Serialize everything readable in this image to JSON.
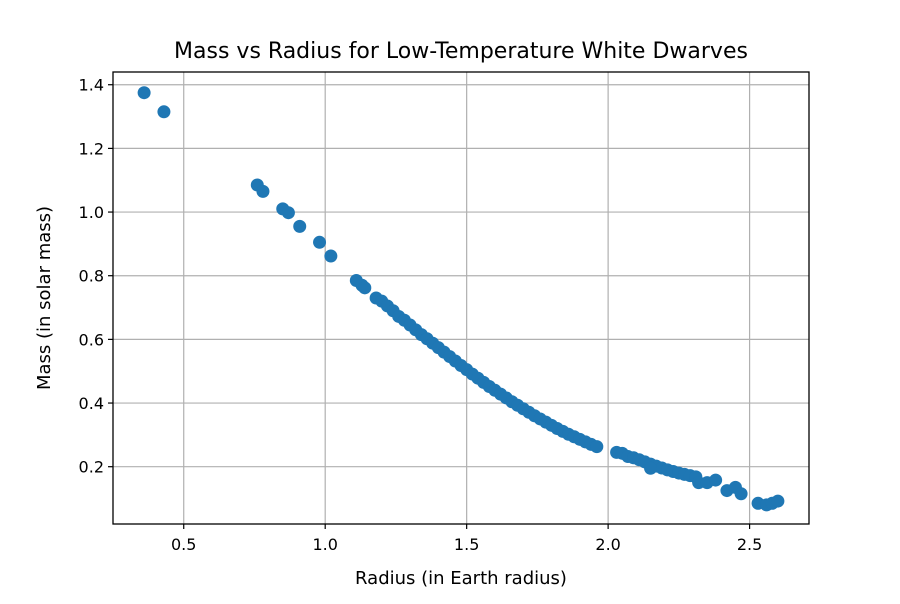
{
  "chart_data": {
    "type": "scatter",
    "title": "Mass vs Radius for Low-Temperature White Dwarves",
    "xlabel": "Radius (in Earth radius)",
    "ylabel": "Mass (in solar mass)",
    "xlim": [
      0.25,
      2.71
    ],
    "ylim": [
      0.02,
      1.44
    ],
    "xticks": [
      0.5,
      1.0,
      1.5,
      2.0,
      2.5
    ],
    "xtick_labels": [
      "0.5",
      "1.0",
      "1.5",
      "2.0",
      "2.5"
    ],
    "yticks": [
      0.2,
      0.4,
      0.6,
      0.8,
      1.0,
      1.2,
      1.4
    ],
    "ytick_labels": [
      "0.2",
      "0.4",
      "0.6",
      "0.8",
      "1.0",
      "1.2",
      "1.4"
    ],
    "grid": true,
    "marker_color": "#1f77b4",
    "points": [
      {
        "x": 0.36,
        "y": 1.375
      },
      {
        "x": 0.43,
        "y": 1.315
      },
      {
        "x": 0.76,
        "y": 1.085
      },
      {
        "x": 0.78,
        "y": 1.065
      },
      {
        "x": 0.85,
        "y": 1.01
      },
      {
        "x": 0.87,
        "y": 0.998
      },
      {
        "x": 0.91,
        "y": 0.955
      },
      {
        "x": 0.98,
        "y": 0.905
      },
      {
        "x": 1.02,
        "y": 0.862
      },
      {
        "x": 1.11,
        "y": 0.785
      },
      {
        "x": 1.13,
        "y": 0.77
      },
      {
        "x": 1.14,
        "y": 0.762
      },
      {
        "x": 1.18,
        "y": 0.73
      },
      {
        "x": 1.2,
        "y": 0.72
      },
      {
        "x": 1.22,
        "y": 0.705
      },
      {
        "x": 1.24,
        "y": 0.69
      },
      {
        "x": 1.26,
        "y": 0.672
      },
      {
        "x": 1.28,
        "y": 0.66
      },
      {
        "x": 1.3,
        "y": 0.645
      },
      {
        "x": 1.32,
        "y": 0.63
      },
      {
        "x": 1.34,
        "y": 0.615
      },
      {
        "x": 1.36,
        "y": 0.602
      },
      {
        "x": 1.38,
        "y": 0.588
      },
      {
        "x": 1.4,
        "y": 0.574
      },
      {
        "x": 1.42,
        "y": 0.56
      },
      {
        "x": 1.44,
        "y": 0.546
      },
      {
        "x": 1.46,
        "y": 0.532
      },
      {
        "x": 1.48,
        "y": 0.518
      },
      {
        "x": 1.5,
        "y": 0.505
      },
      {
        "x": 1.52,
        "y": 0.491
      },
      {
        "x": 1.54,
        "y": 0.478
      },
      {
        "x": 1.56,
        "y": 0.465
      },
      {
        "x": 1.58,
        "y": 0.452
      },
      {
        "x": 1.6,
        "y": 0.44
      },
      {
        "x": 1.62,
        "y": 0.428
      },
      {
        "x": 1.64,
        "y": 0.416
      },
      {
        "x": 1.66,
        "y": 0.404
      },
      {
        "x": 1.68,
        "y": 0.393
      },
      {
        "x": 1.7,
        "y": 0.382
      },
      {
        "x": 1.72,
        "y": 0.371
      },
      {
        "x": 1.74,
        "y": 0.36
      },
      {
        "x": 1.76,
        "y": 0.35
      },
      {
        "x": 1.78,
        "y": 0.34
      },
      {
        "x": 1.8,
        "y": 0.33
      },
      {
        "x": 1.82,
        "y": 0.32
      },
      {
        "x": 1.84,
        "y": 0.311
      },
      {
        "x": 1.86,
        "y": 0.302
      },
      {
        "x": 1.88,
        "y": 0.294
      },
      {
        "x": 1.9,
        "y": 0.286
      },
      {
        "x": 1.92,
        "y": 0.278
      },
      {
        "x": 1.94,
        "y": 0.27
      },
      {
        "x": 1.96,
        "y": 0.263
      },
      {
        "x": 2.03,
        "y": 0.245
      },
      {
        "x": 2.05,
        "y": 0.242
      },
      {
        "x": 2.07,
        "y": 0.232
      },
      {
        "x": 2.09,
        "y": 0.228
      },
      {
        "x": 2.11,
        "y": 0.222
      },
      {
        "x": 2.13,
        "y": 0.215
      },
      {
        "x": 2.15,
        "y": 0.208
      },
      {
        "x": 2.17,
        "y": 0.202
      },
      {
        "x": 2.19,
        "y": 0.196
      },
      {
        "x": 2.21,
        "y": 0.19
      },
      {
        "x": 2.23,
        "y": 0.185
      },
      {
        "x": 2.15,
        "y": 0.195
      },
      {
        "x": 2.25,
        "y": 0.18
      },
      {
        "x": 2.27,
        "y": 0.176
      },
      {
        "x": 2.29,
        "y": 0.172
      },
      {
        "x": 2.31,
        "y": 0.168
      },
      {
        "x": 2.32,
        "y": 0.15
      },
      {
        "x": 2.35,
        "y": 0.15
      },
      {
        "x": 2.38,
        "y": 0.158
      },
      {
        "x": 2.42,
        "y": 0.125
      },
      {
        "x": 2.45,
        "y": 0.135
      },
      {
        "x": 2.47,
        "y": 0.115
      },
      {
        "x": 2.53,
        "y": 0.085
      },
      {
        "x": 2.56,
        "y": 0.08
      },
      {
        "x": 2.58,
        "y": 0.085
      },
      {
        "x": 2.6,
        "y": 0.092
      }
    ]
  }
}
